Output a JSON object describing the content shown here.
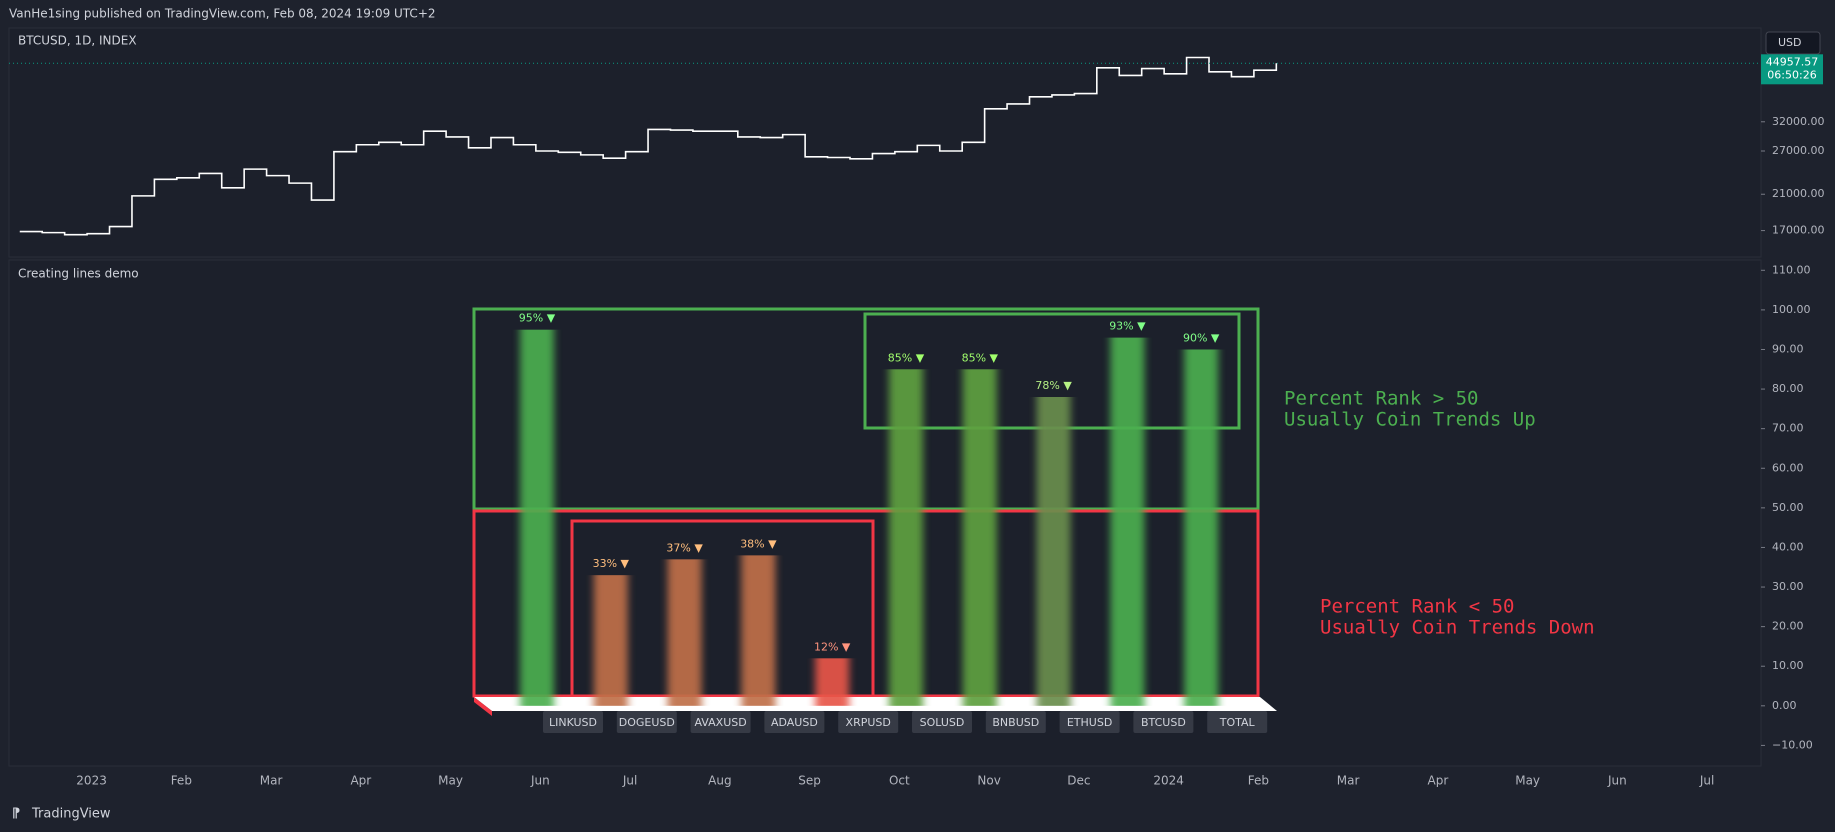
{
  "header": {
    "text": "VanHe1sing published on TradingView.com, Feb 08, 2024 19:09 UTC+2"
  },
  "footer": {
    "brand": "TradingView"
  },
  "chart_data": [
    {
      "type": "line",
      "title": "BTCUSD, 1D, INDEX",
      "currency": "USD",
      "countdown": "06:50:26",
      "color": "#ffffff",
      "log": true,
      "last_price_color": "#089981",
      "x": [
        -0.8,
        -0.55,
        -0.3,
        -0.05,
        0.2,
        0.45,
        0.7,
        0.95,
        1.2,
        1.45,
        1.7,
        1.95,
        2.2,
        2.45,
        2.7,
        2.95,
        3.2,
        3.45,
        3.7,
        3.95,
        4.2,
        4.45,
        4.7,
        4.95,
        5.2,
        5.45,
        5.7,
        5.95,
        6.2,
        6.45,
        6.7,
        6.95,
        7.2,
        7.45,
        7.7,
        7.95,
        8.2,
        8.45,
        8.7,
        8.95,
        9.2,
        9.45,
        9.7,
        9.95,
        10.2,
        10.45,
        10.7,
        10.95,
        11.2,
        11.45,
        11.7,
        11.95,
        12.2,
        12.45,
        12.7,
        12.95,
        13.2
      ],
      "values": [
        16900,
        16800,
        16600,
        16700,
        17400,
        20800,
        22900,
        23100,
        23700,
        21800,
        24300,
        23400,
        22400,
        20300,
        26900,
        28000,
        28400,
        28000,
        30300,
        29300,
        27500,
        29200,
        28000,
        27000,
        26800,
        26400,
        25900,
        26900,
        30600,
        30500,
        30300,
        30300,
        29300,
        29200,
        29700,
        26100,
        26000,
        25800,
        26600,
        26900,
        27900,
        27000,
        28400,
        34500,
        35500,
        37000,
        37400,
        37700,
        43800,
        41900,
        43600,
        42300,
        46500,
        42800,
        41600,
        43200,
        44957.57
      ],
      "xlim": [
        -0.92,
        18.6
      ],
      "xticks": [
        {
          "value": 0,
          "label": "2023"
        },
        {
          "value": 1,
          "label": "Feb"
        },
        {
          "value": 2,
          "label": "Mar"
        },
        {
          "value": 3,
          "label": "Apr"
        },
        {
          "value": 4,
          "label": "May"
        },
        {
          "value": 5,
          "label": "Jun"
        },
        {
          "value": 6,
          "label": "Jul"
        },
        {
          "value": 7,
          "label": "Aug"
        },
        {
          "value": 8,
          "label": "Sep"
        },
        {
          "value": 9,
          "label": "Oct"
        },
        {
          "value": 10,
          "label": "Nov"
        },
        {
          "value": 11,
          "label": "Dec"
        },
        {
          "value": 12,
          "label": "2024"
        },
        {
          "value": 13,
          "label": "Feb"
        },
        {
          "value": 14,
          "label": "Mar"
        },
        {
          "value": 15,
          "label": "Apr"
        },
        {
          "value": 16,
          "label": "May"
        },
        {
          "value": 17,
          "label": "Jun"
        },
        {
          "value": 18,
          "label": "Jul"
        }
      ],
      "ylim": [
        14580,
        55200
      ],
      "yticks": [
        {
          "value": 17000,
          "label": "17000.00"
        },
        {
          "value": 21000,
          "label": "21000.00"
        },
        {
          "value": 27000,
          "label": "27000.00"
        },
        {
          "value": 32000,
          "label": "32000.00"
        }
      ]
    },
    {
      "type": "bar",
      "title": "Creating lines demo",
      "categories": [
        "LINKUSD",
        "DOGEUSD",
        "AVAXUSD",
        "ADAUSD",
        "XRPUSD",
        "SOLUSD",
        "BNBUSD",
        "ETHUSD",
        "BTCUSD",
        "TOTAL"
      ],
      "values": [
        95,
        33,
        37,
        38,
        12,
        85,
        85,
        78,
        93,
        90
      ],
      "value_labels": [
        "95% ▼",
        "33% ▼",
        "37% ▼",
        "38% ▼",
        "12% ▼",
        "85% ▼",
        "85% ▼",
        "78% ▼",
        "93% ▼",
        "90% ▼"
      ],
      "colors": [
        "#4caf50",
        "#c0704a",
        "#c0704a",
        "#c0704a",
        "#e8574a",
        "#5fa040",
        "#5fa040",
        "#6b8e4e",
        "#4caf50",
        "#4caf50"
      ],
      "ylim": [
        -15.2,
        112.6
      ],
      "yticks": [
        {
          "value": 110,
          "label": "110.00"
        },
        {
          "value": 100,
          "label": "100.00"
        },
        {
          "value": 90,
          "label": "90.00"
        },
        {
          "value": 80,
          "label": "80.00"
        },
        {
          "value": 70,
          "label": "70.00"
        },
        {
          "value": 60,
          "label": "60.00"
        },
        {
          "value": 50,
          "label": "50.00"
        },
        {
          "value": 40,
          "label": "40.00"
        },
        {
          "value": 30,
          "label": "30.00"
        },
        {
          "value": 20,
          "label": "20.00"
        },
        {
          "value": 10,
          "label": "10.00"
        },
        {
          "value": 0,
          "label": "0.00"
        },
        {
          "value": -10,
          "label": "−10.00"
        }
      ],
      "annotations": [
        {
          "lines": [
            "Percent Rank > 50",
            "Usually Coin Trends Up"
          ],
          "color": "#4caf50"
        },
        {
          "lines": [
            "Percent Rank < 50",
            "Usually Coin Trends Down"
          ],
          "color": "#f23645"
        }
      ]
    }
  ]
}
